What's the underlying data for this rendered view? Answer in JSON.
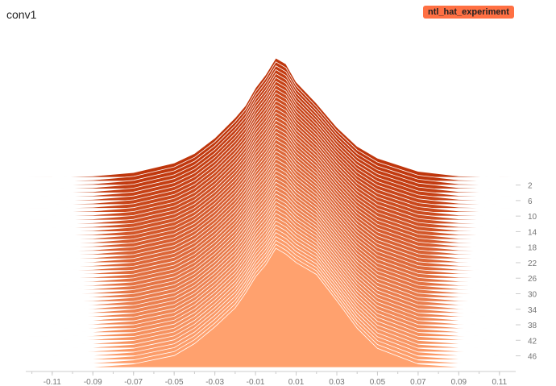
{
  "panel": {
    "title": "conv1",
    "run_label": "ntl_hat_experiment"
  },
  "colors": {
    "back": "#bf360c",
    "front": "#ffa16e",
    "outline": "#ffffff",
    "axis": "#cccccc",
    "badge": "#ff7043"
  },
  "chart_data": {
    "type": "area",
    "mode": "offset-histogram",
    "title": "conv1",
    "xlabel": "",
    "ylabel": "",
    "x_range": [
      -0.123,
      0.118
    ],
    "x_ticks": [
      "-0.11",
      "-0.09",
      "-0.07",
      "-0.05",
      "-0.03",
      "-0.01",
      "0.01",
      "0.03",
      "0.05",
      "0.07",
      "0.09",
      "0.11"
    ],
    "x_tick_values": [
      -0.11,
      -0.09,
      -0.07,
      -0.05,
      -0.03,
      -0.01,
      0.01,
      0.03,
      0.05,
      0.07,
      0.09,
      0.11
    ],
    "step_range": [
      0,
      49
    ],
    "step_ticks": [
      2,
      6,
      10,
      14,
      18,
      22,
      26,
      30,
      34,
      38,
      42,
      46
    ],
    "series": [
      {
        "step": 0,
        "x": [
          -0.11,
          -0.09,
          -0.07,
          -0.05,
          -0.04,
          -0.03,
          -0.02,
          -0.015,
          -0.01,
          -0.005,
          0.0,
          0.005,
          0.01,
          0.02,
          0.03,
          0.04,
          0.05,
          0.07,
          0.09,
          0.11
        ],
        "y": [
          0.001,
          0.01,
          0.04,
          0.12,
          0.2,
          0.33,
          0.5,
          0.6,
          0.75,
          0.86,
          1.0,
          0.95,
          0.8,
          0.62,
          0.42,
          0.26,
          0.16,
          0.05,
          0.01,
          0.001
        ]
      },
      {
        "step": 49,
        "x": [
          -0.11,
          -0.09,
          -0.07,
          -0.05,
          -0.04,
          -0.03,
          -0.02,
          -0.015,
          -0.01,
          -0.005,
          0.0,
          0.005,
          0.01,
          0.02,
          0.03,
          0.04,
          0.05,
          0.07,
          0.09,
          0.11
        ],
        "y": [
          0.0,
          0.005,
          0.03,
          0.1,
          0.2,
          0.34,
          0.5,
          0.62,
          0.76,
          0.86,
          1.0,
          0.95,
          0.88,
          0.78,
          0.56,
          0.33,
          0.16,
          0.03,
          0.005,
          0.0
        ]
      }
    ]
  }
}
